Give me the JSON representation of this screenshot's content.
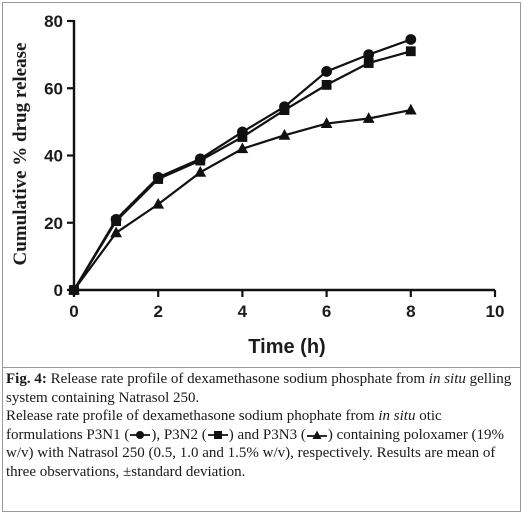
{
  "chart_data": {
    "type": "line",
    "xlabel": "Time (h)",
    "ylabel": "Cumulative % drug release",
    "xlim": [
      0,
      10
    ],
    "ylim": [
      0,
      80
    ],
    "xticks": [
      0,
      2,
      4,
      6,
      8,
      10
    ],
    "yticks": [
      0,
      20,
      40,
      60,
      80
    ],
    "x": [
      0,
      1,
      2,
      3,
      4,
      5,
      6,
      7,
      8
    ],
    "series": [
      {
        "marker": "circle",
        "values": [
          0,
          21,
          33.5,
          39,
          47,
          54.5,
          65,
          70,
          74.5
        ]
      },
      {
        "marker": "square",
        "values": [
          0,
          20.5,
          33,
          38.5,
          45.5,
          53.5,
          61,
          67.5,
          71
        ]
      },
      {
        "marker": "triangle",
        "values": [
          0,
          17,
          25.5,
          35,
          42,
          46,
          49.5,
          51,
          53.5
        ]
      }
    ]
  },
  "caption": {
    "fig_label": "Fig. 4:",
    "title_a": " Release rate profile of dexamethasone sodium phosphate from ",
    "title_italic": "in situ",
    "title_b": " gelling system containing Natrasol 250.",
    "body_a": "Release rate profile of dexamethasone sodium phophate from ",
    "body_italic": "in situ",
    "body_b": " otic formulations P3N1 (",
    "body_c": "), P3N2 (",
    "body_d": ") and P3N3 (",
    "body_e": ") containing poloxamer (19% w/v) with Natrasol 250 (0.5, 1.0 and 1.5% w/v), respectively. Results are mean of three observations, ±standard deviation."
  }
}
